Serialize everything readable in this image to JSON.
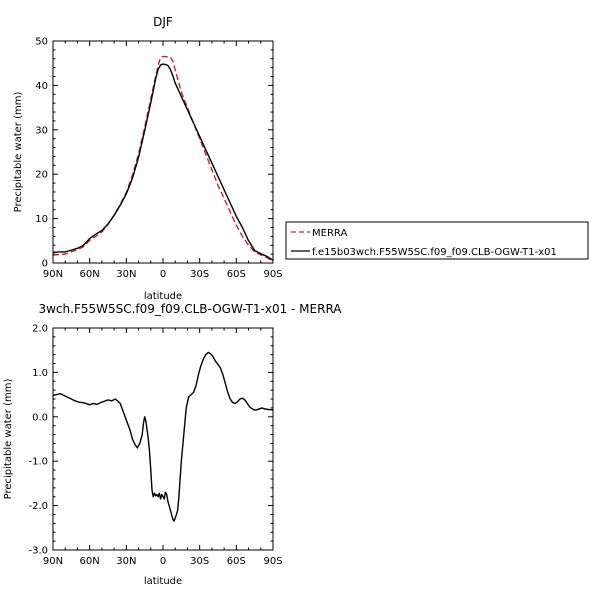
{
  "chart_data": [
    {
      "type": "line",
      "title": "DJF",
      "xlabel": "latitude",
      "ylabel": "Precipitable water (mm)",
      "xlim": [
        90,
        -90
      ],
      "ylim": [
        0,
        50
      ],
      "xticks": [
        90,
        60,
        30,
        0,
        -30,
        -60,
        -90
      ],
      "xtick_labels": [
        "90N",
        "60N",
        "30N",
        "0",
        "30S",
        "60S",
        "90S"
      ],
      "yticks": [
        0,
        10,
        20,
        30,
        40,
        50
      ],
      "ytick_labels": [
        "0",
        "10",
        "20",
        "30",
        "40",
        "50"
      ],
      "legend_position": "right",
      "series": [
        {
          "name": "MERRA",
          "color": "#d62020",
          "dash": "dashed",
          "x": [
            90,
            85,
            80,
            75,
            70,
            65,
            60,
            55,
            50,
            45,
            40,
            35,
            30,
            25,
            20,
            15,
            10,
            6,
            4,
            2,
            0,
            -2,
            -4,
            -6,
            -8,
            -10,
            -15,
            -20,
            -25,
            -30,
            -35,
            -40,
            -45,
            -50,
            -55,
            -60,
            -65,
            -70,
            -75,
            -80,
            -85,
            -90
          ],
          "y": [
            1.8,
            1.9,
            2.0,
            2.5,
            3.0,
            3.7,
            5.1,
            6.0,
            7.0,
            8.7,
            10.8,
            13.2,
            15.9,
            19.8,
            24.6,
            30.5,
            37.0,
            42.0,
            44.5,
            46.3,
            46.5,
            46.5,
            46.4,
            46.4,
            45.5,
            43.5,
            38.5,
            35.0,
            31.5,
            28.0,
            24.5,
            21.0,
            17.5,
            14.5,
            11.5,
            8.5,
            6.0,
            4.0,
            2.5,
            1.8,
            1.2,
            0.4
          ]
        },
        {
          "name": "f.e15b03wch.F55W5SC.f09_f09.CLB-OGW-T1-x01",
          "color": "#000000",
          "dash": "solid",
          "x": [
            90,
            85,
            80,
            75,
            70,
            65,
            60,
            55,
            50,
            45,
            40,
            35,
            30,
            25,
            20,
            15,
            10,
            6,
            4,
            2,
            0,
            -2,
            -4,
            -6,
            -8,
            -10,
            -15,
            -20,
            -25,
            -30,
            -35,
            -40,
            -45,
            -50,
            -55,
            -60,
            -65,
            -70,
            -75,
            -80,
            -85,
            -90
          ],
          "y": [
            2.4,
            2.5,
            2.5,
            2.9,
            3.3,
            4.0,
            5.5,
            6.5,
            7.3,
            8.8,
            10.7,
            13.0,
            15.6,
            19.1,
            23.8,
            29.8,
            36.1,
            41.5,
            43.6,
            44.6,
            44.8,
            44.7,
            44.5,
            43.6,
            42.2,
            40.5,
            37.5,
            34.5,
            31.5,
            28.5,
            25.5,
            22.5,
            19.5,
            16.5,
            13.5,
            10.5,
            8.0,
            5.0,
            2.8,
            2.1,
            1.5,
            0.6
          ]
        }
      ]
    },
    {
      "type": "line",
      "title": "3wch.F55W5SC.f09_f09.CLB-OGW-T1-x01 - MERRA",
      "xlabel": "latitude",
      "ylabel": "Precipitable water (mm)",
      "xlim": [
        90,
        -90
      ],
      "ylim": [
        -3,
        2
      ],
      "xticks": [
        90,
        60,
        30,
        0,
        -30,
        -60,
        -90
      ],
      "xtick_labels": [
        "90N",
        "60N",
        "30N",
        "0",
        "30S",
        "60S",
        "90S"
      ],
      "yticks": [
        -3,
        -2,
        -1,
        0,
        1,
        2
      ],
      "ytick_labels": [
        "-3.0",
        "-2.0",
        "-1.0",
        "0.0",
        "1.0",
        "2.0"
      ],
      "series": [
        {
          "color": "#000000",
          "dash": "solid",
          "x": [
            90,
            87,
            84,
            81,
            78,
            75,
            72,
            69,
            66,
            63,
            60,
            57,
            54,
            51,
            48,
            45,
            42,
            39,
            37,
            35,
            33,
            31,
            29,
            27,
            25,
            23,
            21,
            19,
            17,
            16,
            15,
            14,
            13,
            12,
            11,
            10,
            9,
            8,
            7,
            6,
            5,
            4,
            3,
            2,
            1,
            0,
            -1,
            -2,
            -3,
            -4,
            -5,
            -6,
            -7,
            -8,
            -9,
            -10,
            -11,
            -12,
            -13,
            -14,
            -15,
            -17,
            -19,
            -21,
            -23,
            -25,
            -27,
            -29,
            -31,
            -33,
            -35,
            -37,
            -39,
            -41,
            -43,
            -45,
            -47,
            -49,
            -51,
            -53,
            -55,
            -57,
            -59,
            -61,
            -63,
            -65,
            -67,
            -69,
            -71,
            -73,
            -75,
            -77,
            -79,
            -81,
            -83,
            -85,
            -87,
            -89,
            -90
          ],
          "y": [
            0.48,
            0.5,
            0.52,
            0.48,
            0.44,
            0.4,
            0.36,
            0.33,
            0.32,
            0.3,
            0.27,
            0.3,
            0.28,
            0.32,
            0.35,
            0.38,
            0.36,
            0.4,
            0.35,
            0.3,
            0.15,
            0.0,
            -0.15,
            -0.3,
            -0.5,
            -0.62,
            -0.7,
            -0.6,
            -0.4,
            -0.15,
            0.0,
            -0.1,
            -0.3,
            -0.5,
            -0.8,
            -1.2,
            -1.65,
            -1.8,
            -1.72,
            -1.78,
            -1.75,
            -1.8,
            -1.72,
            -1.85,
            -1.75,
            -1.8,
            -1.85,
            -1.7,
            -1.75,
            -1.9,
            -2.0,
            -2.1,
            -2.2,
            -2.3,
            -2.35,
            -2.28,
            -2.2,
            -2.1,
            -1.8,
            -1.4,
            -1.0,
            -0.4,
            0.2,
            0.45,
            0.5,
            0.55,
            0.7,
            0.95,
            1.15,
            1.3,
            1.4,
            1.45,
            1.42,
            1.35,
            1.25,
            1.18,
            1.1,
            0.95,
            0.75,
            0.55,
            0.4,
            0.32,
            0.3,
            0.34,
            0.4,
            0.42,
            0.38,
            0.3,
            0.22,
            0.18,
            0.15,
            0.16,
            0.18,
            0.2,
            0.18,
            0.17,
            0.16,
            0.16,
            0.15
          ]
        }
      ]
    }
  ]
}
